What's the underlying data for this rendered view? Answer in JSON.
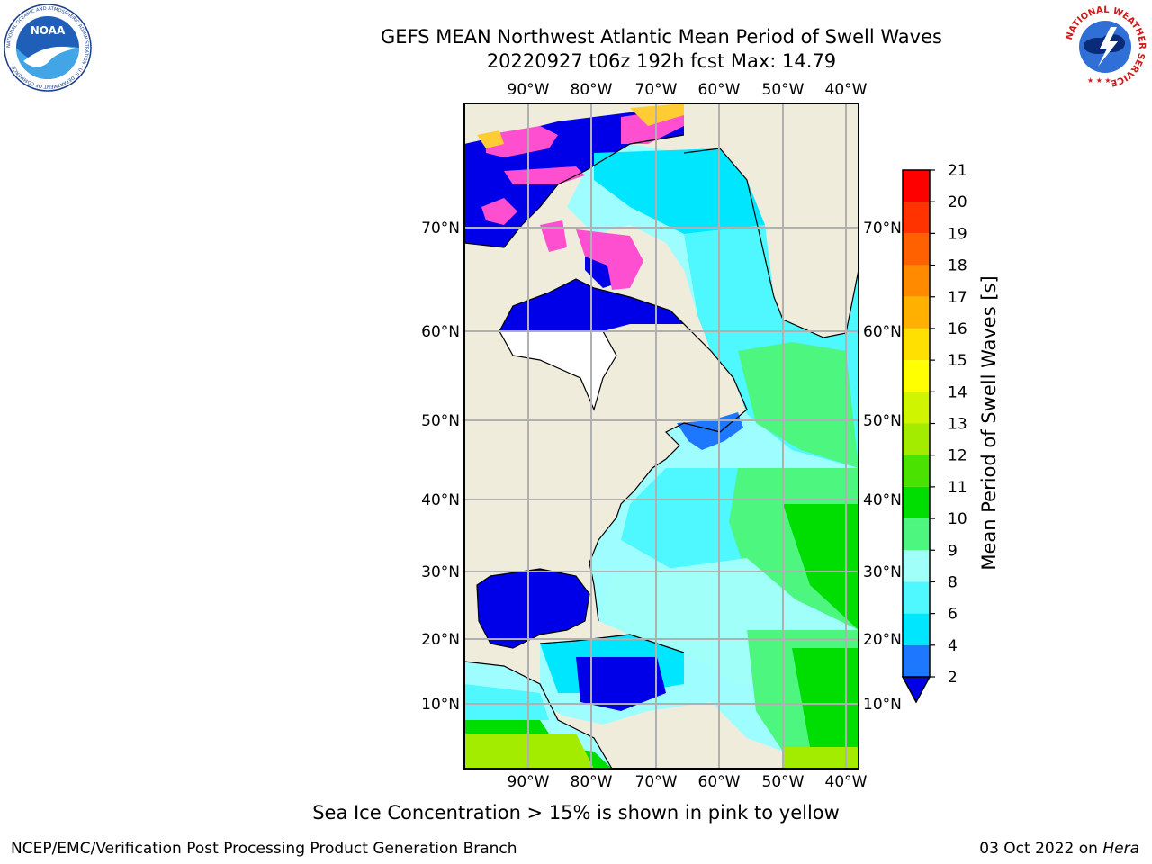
{
  "title": {
    "line1": "GEFS MEAN Northwest Atlantic Mean Period of Swell Waves",
    "line2": "20220927 t06z 192h fcst   Max: 14.79"
  },
  "map": {
    "lon_labels": [
      "90°W",
      "80°W",
      "70°W",
      "60°W",
      "50°W",
      "40°W"
    ],
    "lat_labels": [
      "70°N",
      "60°N",
      "50°N",
      "40°N",
      "30°N",
      "20°N",
      "10°N"
    ],
    "colors": {
      "land": "#efecdc",
      "ocean_base": "#9efeff",
      "ice": "#ff4fd1",
      "grid": "#b0b0b0",
      "coast": "#000000"
    }
  },
  "colorbar": {
    "label": "Mean Period of Swell Waves [s]",
    "ticks": [
      "2",
      "4",
      "6",
      "8",
      "9",
      "10",
      "11",
      "12",
      "13",
      "14",
      "15",
      "16",
      "17",
      "18",
      "19",
      "20",
      "21"
    ],
    "colors": [
      "#0000e8",
      "#1e78ff",
      "#00e6ff",
      "#4ff7ff",
      "#a0fff8",
      "#4df67f",
      "#00dd00",
      "#4ae200",
      "#a3ec00",
      "#cff500",
      "#ffff00",
      "#ffe000",
      "#ffb000",
      "#ff8a00",
      "#ff6000",
      "#ff3300",
      "#ff0000"
    ]
  },
  "footnote": "Sea Ice Concentration > 15% is shown in pink to yellow",
  "credit_left": "NCEP/EMC/Verification Post Processing Product Generation Branch",
  "credit_right_date": "03 Oct 2022 on ",
  "credit_right_host": "Hera",
  "logos": {
    "noaa": {
      "text": "NOAA",
      "ring_text": "NATIONAL OCEANIC AND ATMOSPHERIC ADMINISTRATION · U.S. DEPARTMENT OF COMMERCE"
    },
    "nws": {
      "ring_text": "NATIONAL WEATHER SERVICE"
    }
  }
}
